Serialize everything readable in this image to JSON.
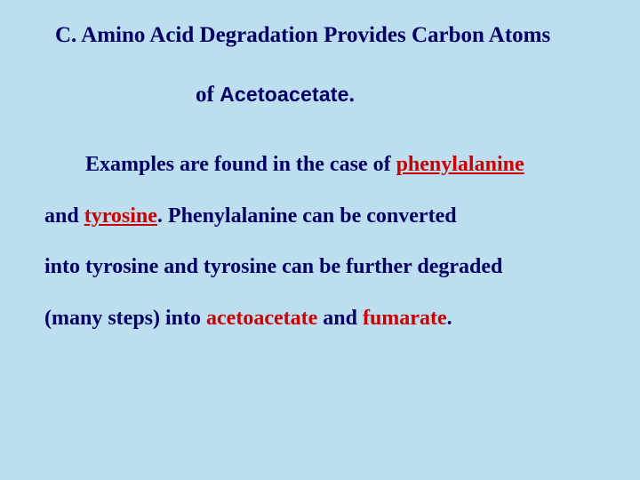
{
  "heading": {
    "line1": "C.  Amino Acid Degradation Provides Carbon Atoms",
    "of": "of ",
    "aceto": "Acetoacetate",
    "period": "."
  },
  "body": {
    "lead": "Examples are found in the case of ",
    "phen": "phenylalanine",
    "t2a": "and ",
    "tyro": "tyrosine",
    "t2b": ".  Phenylalanine can be converted",
    "t3": "into tyrosine and tyrosine can be further degraded",
    "t4a": "(many steps) into ",
    "aceto2": "acetoacetate",
    "t4b": " and ",
    "fum": "fumarate",
    "t4c": "."
  },
  "colors": {
    "background": "#bddeee",
    "textPrimary": "#010166",
    "accent": "#cc0000"
  },
  "typography": {
    "headingFontSize": 25,
    "bodyFontSize": 24,
    "fontFamily": "Times New Roman",
    "emphasisFontFamily": "Verdana"
  }
}
